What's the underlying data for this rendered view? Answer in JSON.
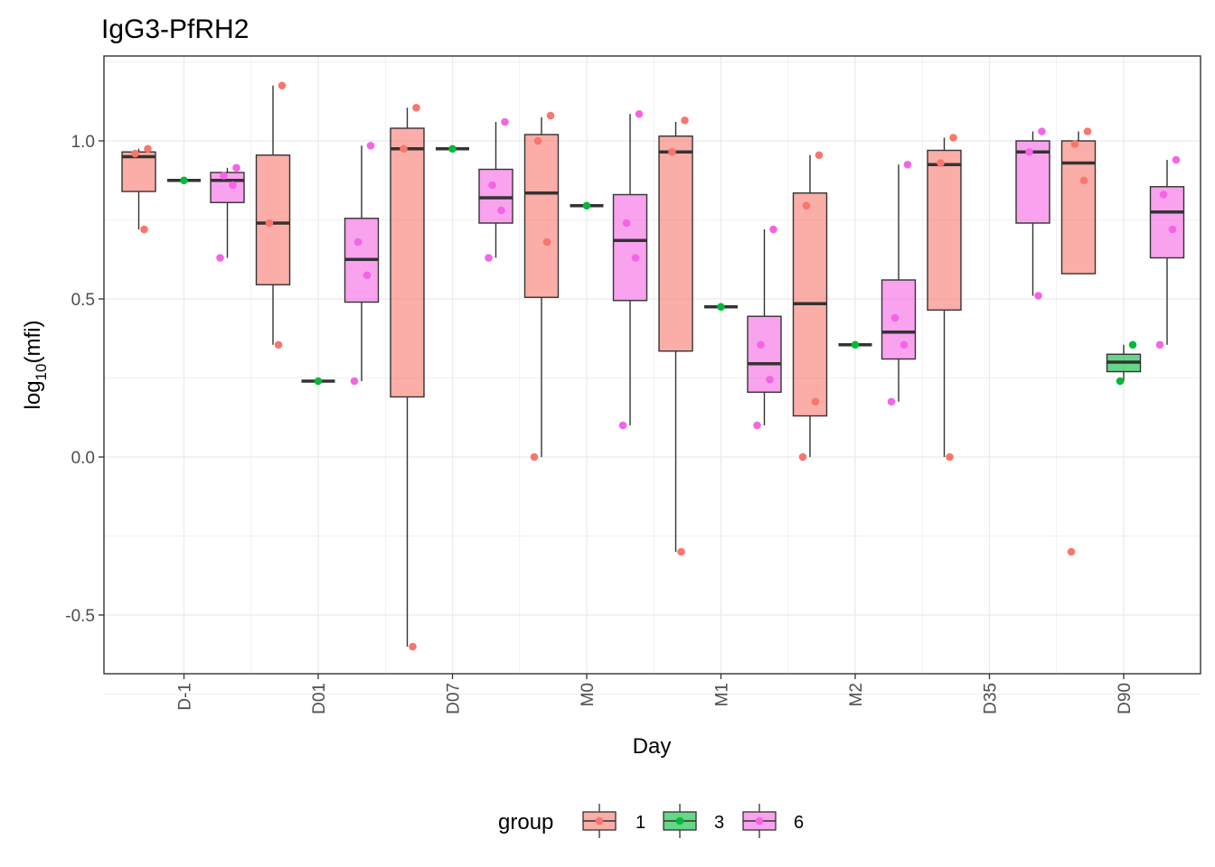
{
  "chart_data": {
    "type": "boxplot",
    "title": "IgG3-PfRH2",
    "xlabel": "Day",
    "ylabel": {
      "prefix": "log",
      "subscript": "10",
      "suffix": "(mfi)"
    },
    "categories": [
      "D-1",
      "D01",
      "D07",
      "M0",
      "M1",
      "M2",
      "D35",
      "D90"
    ],
    "y_ticks": [
      -0.5,
      0.0,
      0.5,
      1.0
    ],
    "y_tick_labels": [
      "-0.5",
      "0.0",
      "0.5",
      "1.0"
    ],
    "ylim": [
      -0.69,
      1.26
    ],
    "grid": true,
    "legend": {
      "title": "group",
      "position": "bottom"
    },
    "groups": [
      {
        "name": "1",
        "fill": "#F8766D",
        "point": "#F8766D"
      },
      {
        "name": "3",
        "fill": "#00BA38",
        "point": "#00BA38"
      },
      {
        "name": "6",
        "fill": "#F564E3",
        "point": "#F564E3"
      }
    ],
    "boxes": [
      {
        "category": "D-1",
        "group": "1",
        "min": 0.72,
        "q1": 0.84,
        "median": 0.95,
        "q3": 0.965,
        "max": 0.975,
        "points": [
          {
            "y": 0.975
          },
          {
            "y": 0.96
          },
          {
            "y": 0.72
          }
        ]
      },
      {
        "category": "D-1",
        "group": "3",
        "min": 0.875,
        "q1": 0.875,
        "median": 0.875,
        "q3": 0.875,
        "max": 0.875,
        "points": [
          {
            "y": 0.875
          }
        ]
      },
      {
        "category": "D-1",
        "group": "6",
        "min": 0.63,
        "q1": 0.805,
        "median": 0.875,
        "q3": 0.9,
        "max": 0.915,
        "points": [
          {
            "y": 0.915
          },
          {
            "y": 0.89
          },
          {
            "y": 0.86
          },
          {
            "y": 0.63
          }
        ]
      },
      {
        "category": "D01",
        "group": "1",
        "min": 0.355,
        "q1": 0.545,
        "median": 0.74,
        "q3": 0.955,
        "max": 1.175,
        "points": [
          {
            "y": 1.175
          },
          {
            "y": 0.74
          },
          {
            "y": 0.355
          }
        ]
      },
      {
        "category": "D01",
        "group": "3",
        "min": 0.24,
        "q1": 0.24,
        "median": 0.24,
        "q3": 0.24,
        "max": 0.24,
        "points": [
          {
            "y": 0.24
          }
        ]
      },
      {
        "category": "D01",
        "group": "6",
        "min": 0.24,
        "q1": 0.49,
        "median": 0.625,
        "q3": 0.755,
        "max": 0.985,
        "points": [
          {
            "y": 0.985
          },
          {
            "y": 0.68
          },
          {
            "y": 0.575
          },
          {
            "y": 0.24
          }
        ]
      },
      {
        "category": "D07",
        "group": "1",
        "min": -0.6,
        "q1": 0.19,
        "median": 0.975,
        "q3": 1.04,
        "max": 1.105,
        "points": [
          {
            "y": 1.105
          },
          {
            "y": 0.975
          },
          {
            "y": -0.6
          }
        ]
      },
      {
        "category": "D07",
        "group": "3",
        "min": 0.975,
        "q1": 0.975,
        "median": 0.975,
        "q3": 0.975,
        "max": 0.975,
        "points": [
          {
            "y": 0.975
          }
        ]
      },
      {
        "category": "D07",
        "group": "6",
        "min": 0.63,
        "q1": 0.74,
        "median": 0.82,
        "q3": 0.91,
        "max": 1.06,
        "points": [
          {
            "y": 1.06
          },
          {
            "y": 0.86
          },
          {
            "y": 0.78
          },
          {
            "y": 0.63
          }
        ]
      },
      {
        "category": "M0",
        "group": "1",
        "min": 0.0,
        "q1": 0.505,
        "median": 0.835,
        "q3": 1.02,
        "max": 1.075,
        "points": [
          {
            "y": 1.08
          },
          {
            "y": 1.0
          },
          {
            "y": 0.68
          },
          {
            "y": 0.0
          }
        ]
      },
      {
        "category": "M0",
        "group": "3",
        "min": 0.795,
        "q1": 0.795,
        "median": 0.795,
        "q3": 0.795,
        "max": 0.795,
        "points": [
          {
            "y": 0.795
          }
        ]
      },
      {
        "category": "M0",
        "group": "6",
        "min": 0.1,
        "q1": 0.495,
        "median": 0.685,
        "q3": 0.83,
        "max": 1.085,
        "points": [
          {
            "y": 1.085
          },
          {
            "y": 0.74
          },
          {
            "y": 0.63
          },
          {
            "y": 0.1
          }
        ]
      },
      {
        "category": "M1",
        "group": "1",
        "min": -0.3,
        "q1": 0.335,
        "median": 0.965,
        "q3": 1.015,
        "max": 1.06,
        "points": [
          {
            "y": 1.065
          },
          {
            "y": 0.965
          },
          {
            "y": -0.3
          }
        ]
      },
      {
        "category": "M1",
        "group": "3",
        "min": 0.475,
        "q1": 0.475,
        "median": 0.475,
        "q3": 0.475,
        "max": 0.475,
        "points": [
          {
            "y": 0.475
          }
        ]
      },
      {
        "category": "M1",
        "group": "6",
        "min": 0.1,
        "q1": 0.205,
        "median": 0.295,
        "q3": 0.445,
        "max": 0.72,
        "points": [
          {
            "y": 0.72
          },
          {
            "y": 0.355
          },
          {
            "y": 0.245
          },
          {
            "y": 0.1
          }
        ]
      },
      {
        "category": "M2",
        "group": "1",
        "min": 0.0,
        "q1": 0.13,
        "median": 0.485,
        "q3": 0.835,
        "max": 0.955,
        "points": [
          {
            "y": 0.955
          },
          {
            "y": 0.795
          },
          {
            "y": 0.175
          },
          {
            "y": 0.0
          }
        ]
      },
      {
        "category": "M2",
        "group": "3",
        "min": 0.355,
        "q1": 0.355,
        "median": 0.355,
        "q3": 0.355,
        "max": 0.355,
        "points": [
          {
            "y": 0.355
          }
        ]
      },
      {
        "category": "M2",
        "group": "6",
        "min": 0.175,
        "q1": 0.31,
        "median": 0.395,
        "q3": 0.56,
        "max": 0.925,
        "points": [
          {
            "y": 0.925
          },
          {
            "y": 0.44
          },
          {
            "y": 0.355
          },
          {
            "y": 0.175
          }
        ]
      },
      {
        "category": "D35",
        "group": "1",
        "min": 0.0,
        "q1": 0.465,
        "median": 0.925,
        "q3": 0.97,
        "max": 1.01,
        "points": [
          {
            "y": 1.01
          },
          {
            "y": 0.93
          },
          {
            "y": 0.0
          }
        ]
      },
      {
        "category": "D35",
        "group": "6",
        "min": 0.51,
        "q1": 0.74,
        "median": 0.965,
        "q3": 1.0,
        "max": 1.03,
        "points": [
          {
            "y": 1.03
          },
          {
            "y": 0.965
          },
          {
            "y": 0.51
          }
        ]
      },
      {
        "category": "D90",
        "group": "1",
        "min": 0.58,
        "q1": 0.58,
        "median": 0.93,
        "q3": 1.0,
        "max": 1.03,
        "points": [
          {
            "y": 1.03
          },
          {
            "y": 0.99
          },
          {
            "y": 0.875
          },
          {
            "y": -0.3
          }
        ]
      },
      {
        "category": "D90",
        "group": "3",
        "min": 0.24,
        "q1": 0.27,
        "median": 0.3,
        "q3": 0.325,
        "max": 0.355,
        "points": [
          {
            "y": 0.355
          },
          {
            "y": 0.24
          }
        ]
      },
      {
        "category": "D90",
        "group": "6",
        "min": 0.355,
        "q1": 0.63,
        "median": 0.775,
        "q3": 0.855,
        "max": 0.94,
        "points": [
          {
            "y": 0.94
          },
          {
            "y": 0.83
          },
          {
            "y": 0.72
          },
          {
            "y": 0.355
          }
        ]
      }
    ]
  }
}
